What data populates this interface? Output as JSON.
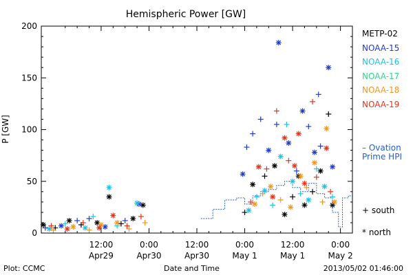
{
  "chart_data": {
    "type": "scatter",
    "title": "Hemispheric Power [GW]",
    "ylabel": "P [GW]",
    "xlabel": "Date and Time",
    "ylim": [
      0,
      200
    ],
    "xlim": [
      -3,
      75
    ],
    "x_unit": "hours since Apr 29 00:00",
    "yticks": [
      0,
      50,
      100,
      150,
      200
    ],
    "xticks": [
      {
        "x": 12,
        "line1": "12:00",
        "line2": "Apr29"
      },
      {
        "x": 24,
        "line1": "0:00",
        "line2": "Apr30"
      },
      {
        "x": 36,
        "line1": "12:00",
        "line2": "Apr30"
      },
      {
        "x": 48,
        "line1": "0:00",
        "line2": "May 1"
      },
      {
        "x": 60,
        "line1": "12:00",
        "line2": "May 1"
      },
      {
        "x": 72,
        "line1": "0:00",
        "line2": "May 2"
      }
    ],
    "grid": false,
    "legend_position": "right",
    "series": [
      {
        "name": "METP-02",
        "color": "#000000",
        "points": [
          {
            "x": -2.5,
            "y": 8,
            "m": "*"
          },
          {
            "x": 0.5,
            "y": 5,
            "m": "+"
          },
          {
            "x": 4,
            "y": 12,
            "m": "*"
          },
          {
            "x": 7,
            "y": 8,
            "m": "+"
          },
          {
            "x": 11,
            "y": 10,
            "m": "*"
          },
          {
            "x": 14,
            "y": 35,
            "m": "*"
          },
          {
            "x": 17,
            "y": 9,
            "m": "+"
          },
          {
            "x": 20,
            "y": 14,
            "m": "*"
          },
          {
            "x": 22.5,
            "y": 27,
            "m": "*"
          },
          {
            "x": 48,
            "y": 20,
            "m": "+"
          },
          {
            "x": 50,
            "y": 47,
            "m": "*"
          },
          {
            "x": 53,
            "y": 55,
            "m": "+"
          },
          {
            "x": 55.5,
            "y": 65,
            "m": "*"
          },
          {
            "x": 58,
            "y": 18,
            "m": "*"
          },
          {
            "x": 60,
            "y": 35,
            "m": "+"
          },
          {
            "x": 61.5,
            "y": 55,
            "m": "*"
          },
          {
            "x": 63,
            "y": 27,
            "m": "*"
          },
          {
            "x": 65,
            "y": 40,
            "m": "+"
          },
          {
            "x": 67,
            "y": 60,
            "m": "*"
          },
          {
            "x": 69,
            "y": 115,
            "m": "+"
          },
          {
            "x": 70,
            "y": 27,
            "m": "*"
          }
        ]
      },
      {
        "name": "NOAA-15",
        "color": "#1e3cc8",
        "points": [
          {
            "x": -2,
            "y": 5,
            "m": "+"
          },
          {
            "x": 2,
            "y": 7,
            "m": "*"
          },
          {
            "x": 6,
            "y": 12,
            "m": "+"
          },
          {
            "x": 9,
            "y": 14,
            "m": "+"
          },
          {
            "x": 13,
            "y": 6,
            "m": "*"
          },
          {
            "x": 18,
            "y": 12,
            "m": "+"
          },
          {
            "x": 21.5,
            "y": 28,
            "m": "*"
          },
          {
            "x": 47.5,
            "y": 57,
            "m": "*"
          },
          {
            "x": 48.5,
            "y": 83,
            "m": "+"
          },
          {
            "x": 50,
            "y": 96,
            "m": "+"
          },
          {
            "x": 52,
            "y": 110,
            "m": "+"
          },
          {
            "x": 54,
            "y": 80,
            "m": "*"
          },
          {
            "x": 56,
            "y": 105,
            "m": "+"
          },
          {
            "x": 56.5,
            "y": 184,
            "m": "*"
          },
          {
            "x": 59,
            "y": 87,
            "m": "*"
          },
          {
            "x": 61,
            "y": 60,
            "m": "+"
          },
          {
            "x": 62.5,
            "y": 118,
            "m": "*"
          },
          {
            "x": 64,
            "y": 103,
            "m": "+"
          },
          {
            "x": 65.5,
            "y": 78,
            "m": "*"
          },
          {
            "x": 66.5,
            "y": 134,
            "m": "+"
          },
          {
            "x": 67,
            "y": 84,
            "m": "+"
          },
          {
            "x": 69,
            "y": 160,
            "m": "*"
          },
          {
            "x": 70,
            "y": 64,
            "m": "*"
          }
        ]
      },
      {
        "name": "NOAA-16",
        "color": "#19c3e6",
        "points": [
          {
            "x": -1,
            "y": 4,
            "m": "*"
          },
          {
            "x": 3,
            "y": 9,
            "m": "+"
          },
          {
            "x": 8,
            "y": 5,
            "m": "*"
          },
          {
            "x": 10,
            "y": 16,
            "m": "+"
          },
          {
            "x": 14,
            "y": 44,
            "m": "*"
          },
          {
            "x": 16,
            "y": 7,
            "m": "+"
          },
          {
            "x": 21,
            "y": 29,
            "m": "*"
          },
          {
            "x": 49,
            "y": 22,
            "m": "*"
          },
          {
            "x": 51,
            "y": 35,
            "m": "+"
          },
          {
            "x": 53,
            "y": 41,
            "m": "*"
          },
          {
            "x": 55,
            "y": 27,
            "m": "+"
          },
          {
            "x": 57,
            "y": 74,
            "m": "*"
          },
          {
            "x": 58.5,
            "y": 105,
            "m": "+"
          },
          {
            "x": 60,
            "y": 50,
            "m": "*"
          },
          {
            "x": 62,
            "y": 38,
            "m": "+"
          },
          {
            "x": 64,
            "y": 32,
            "m": "*"
          },
          {
            "x": 66,
            "y": 62,
            "m": "+"
          },
          {
            "x": 68,
            "y": 45,
            "m": "*"
          },
          {
            "x": 70,
            "y": 35,
            "m": "+"
          }
        ]
      },
      {
        "name": "NOAA-17",
        "color": "#2ed68a",
        "points": []
      },
      {
        "name": "NOAA-18",
        "color": "#f0961e",
        "points": [
          {
            "x": 0,
            "y": 3,
            "m": "+"
          },
          {
            "x": 5,
            "y": 6,
            "m": "*"
          },
          {
            "x": 9,
            "y": 3,
            "m": "+"
          },
          {
            "x": 12,
            "y": 8,
            "m": "*"
          },
          {
            "x": 16,
            "y": 10,
            "m": "*"
          },
          {
            "x": 19,
            "y": 4,
            "m": "+"
          },
          {
            "x": 23,
            "y": 10,
            "m": "+"
          },
          {
            "x": 50.5,
            "y": 28,
            "m": "*"
          },
          {
            "x": 52.5,
            "y": 38,
            "m": "+"
          },
          {
            "x": 54.5,
            "y": 45,
            "m": "*"
          },
          {
            "x": 57,
            "y": 32,
            "m": "+"
          },
          {
            "x": 59.5,
            "y": 25,
            "m": "*"
          },
          {
            "x": 62,
            "y": 55,
            "m": "*"
          },
          {
            "x": 63.5,
            "y": 44,
            "m": "+"
          },
          {
            "x": 65.5,
            "y": 68,
            "m": "*"
          },
          {
            "x": 67.5,
            "y": 30,
            "m": "+"
          },
          {
            "x": 68.5,
            "y": 101,
            "m": "*"
          },
          {
            "x": 70.5,
            "y": 30,
            "m": "*"
          }
        ]
      },
      {
        "name": "NOAA-19",
        "color": "#e63219",
        "points": [
          {
            "x": -0.5,
            "y": 7,
            "m": "+"
          },
          {
            "x": 3.5,
            "y": 4,
            "m": "*"
          },
          {
            "x": 7.5,
            "y": 10,
            "m": "+"
          },
          {
            "x": 11.5,
            "y": 5,
            "m": "*"
          },
          {
            "x": 15,
            "y": 17,
            "m": "*"
          },
          {
            "x": 18.5,
            "y": 7,
            "m": "+"
          },
          {
            "x": 22,
            "y": 16,
            "m": "+"
          },
          {
            "x": 49.5,
            "y": 30,
            "m": "+"
          },
          {
            "x": 51.5,
            "y": 64,
            "m": "*"
          },
          {
            "x": 53.5,
            "y": 62,
            "m": "+"
          },
          {
            "x": 55,
            "y": 35,
            "m": "*"
          },
          {
            "x": 56,
            "y": 118,
            "m": "+"
          },
          {
            "x": 58,
            "y": 92,
            "m": "*"
          },
          {
            "x": 59,
            "y": 70,
            "m": "+"
          },
          {
            "x": 60.5,
            "y": 65,
            "m": "*"
          },
          {
            "x": 61.5,
            "y": 96,
            "m": "*"
          },
          {
            "x": 63,
            "y": 48,
            "m": "*"
          },
          {
            "x": 65,
            "y": 127,
            "m": "+"
          },
          {
            "x": 66,
            "y": 54,
            "m": "+"
          },
          {
            "x": 68.5,
            "y": 82,
            "m": "*"
          },
          {
            "x": 69.5,
            "y": 40,
            "m": "+"
          }
        ]
      }
    ],
    "ovation": {
      "name_line1": "– Ovation",
      "name_line2": "Prime HPI",
      "color": "#1f5fd6",
      "steps": [
        [
          37,
          14
        ],
        [
          40,
          23
        ],
        [
          43,
          32
        ],
        [
          46,
          34
        ],
        [
          48,
          28
        ],
        [
          50,
          36
        ],
        [
          52,
          40
        ],
        [
          54,
          42
        ],
        [
          56,
          46
        ],
        [
          58,
          50
        ],
        [
          60,
          44
        ],
        [
          62,
          40
        ],
        [
          64,
          48
        ],
        [
          66,
          38
        ],
        [
          68,
          34
        ],
        [
          70,
          20
        ],
        [
          71.5,
          6
        ],
        [
          72.5,
          34
        ],
        [
          74,
          36
        ]
      ]
    },
    "marker_legend": {
      "plus": "+ south",
      "star": "* north"
    }
  },
  "footer": {
    "plot_credit": "Plot: CCMC",
    "timestamp": "2013/05/02 01:46:00"
  }
}
